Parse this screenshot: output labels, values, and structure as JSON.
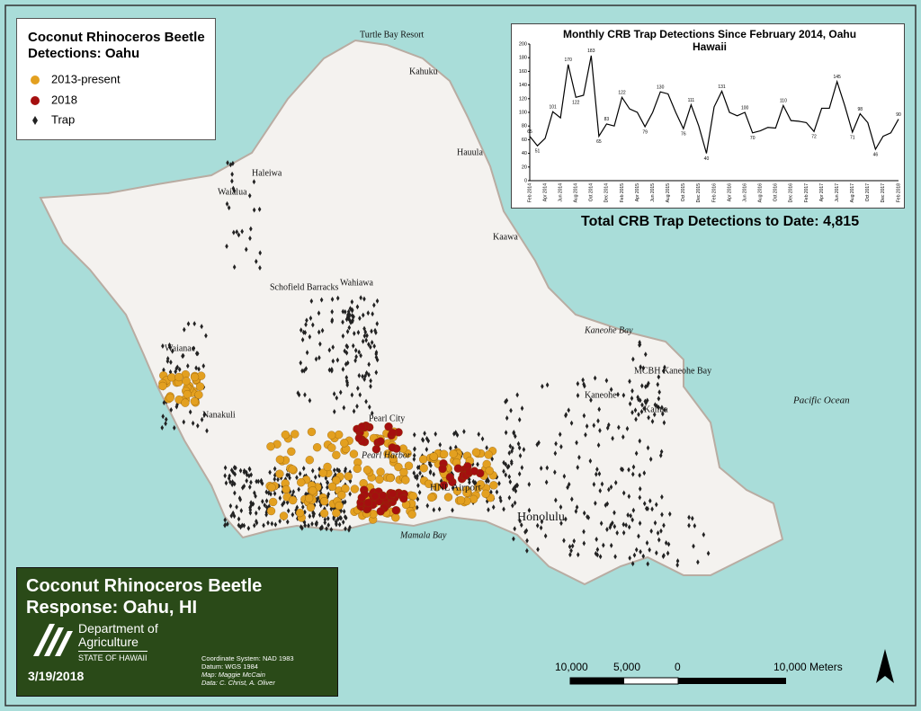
{
  "legend": {
    "title": "Coconut Rhinoceros Beetle Detections: Oahu",
    "items": [
      "2013-present",
      "2018",
      "Trap"
    ]
  },
  "places": [
    "Turtle Bay Resort",
    "Kahuku",
    "Hauula",
    "Haleiwa",
    "Waialua",
    "Kaawa",
    "Schofield Barracks",
    "Wahiawa",
    "Kaneohe Bay",
    "MCBH Kaneohe Bay",
    "Kaneohe",
    "Kailua",
    "Pacific Ocean",
    "Waianae",
    "Nanakuli",
    "Pearl City",
    "Pearl Harbor",
    "HNL Airport",
    "Honolulu",
    "Mamala Bay"
  ],
  "total": "Total CRB Trap Detections to Date: 4,815",
  "chart_data": {
    "type": "line",
    "title": "Monthly CRB Trap Detections Since February 2014, Oahu Hawaii",
    "color": "#000000",
    "categories": [
      "Feb 2014",
      null,
      "Apr 2014",
      null,
      "Jun 2014",
      null,
      "Aug 2014",
      null,
      "Oct 2014",
      null,
      "Dec 2014",
      null,
      "Feb 2015",
      null,
      "Apr 2015",
      null,
      "Jun 2015",
      null,
      "Aug 2015",
      null,
      "Oct 2015",
      null,
      "Dec 2015",
      null,
      "Feb 2016",
      null,
      "Apr 2016",
      null,
      "Jun 2016",
      null,
      "Aug 2016",
      null,
      "Oct 2016",
      null,
      "Dec 2016",
      null,
      "Feb 2017",
      null,
      "Apr 2017",
      null,
      "Jun 2017",
      null,
      "Aug 2017",
      null,
      "Oct 2017",
      null,
      "Dec 2017",
      null,
      "Feb 2018"
    ],
    "values": [
      65,
      51,
      62,
      101,
      92,
      170,
      122,
      125,
      183,
      65,
      83,
      80,
      122,
      105,
      100,
      79,
      100,
      130,
      127,
      100,
      76,
      111,
      80,
      40,
      108,
      131,
      100,
      95,
      100,
      70,
      73,
      78,
      77,
      110,
      88,
      87,
      85,
      72,
      106,
      106,
      145,
      110,
      71,
      98,
      85,
      46,
      65,
      70,
      90
    ],
    "value_labels": [
      "65",
      "51",
      null,
      "101",
      null,
      "170",
      "122",
      null,
      "183",
      "65",
      "83",
      null,
      "122",
      null,
      null,
      "79",
      null,
      "130",
      null,
      null,
      "76",
      "111",
      null,
      "40",
      null,
      "131",
      null,
      null,
      "100",
      "70",
      null,
      null,
      null,
      "110",
      null,
      null,
      null,
      "72",
      null,
      null,
      "145",
      null,
      "71",
      "98",
      null,
      "46",
      null,
      null,
      "90"
    ],
    "ylim": [
      0,
      200
    ],
    "yticks": [
      0,
      20,
      40,
      60,
      80,
      100,
      120,
      140,
      160,
      180,
      200
    ],
    "grid": false
  },
  "footer": {
    "title": "Coconut Rhinoceros Beetle Response: Oahu, HI",
    "dept": "Department of Agriculture",
    "state": "STATE OF HAWAII",
    "date": "3/19/2018",
    "notes": [
      "Coordinate System: NAD 1983",
      "Datum: WGS 1984",
      "Map: Maggie McCain",
      "Data: C. Christ, A. Oliver"
    ]
  },
  "scale_bar": {
    "labels": [
      "10,000",
      "5,000",
      "0",
      "10,000 Meters"
    ],
    "north": "N"
  }
}
